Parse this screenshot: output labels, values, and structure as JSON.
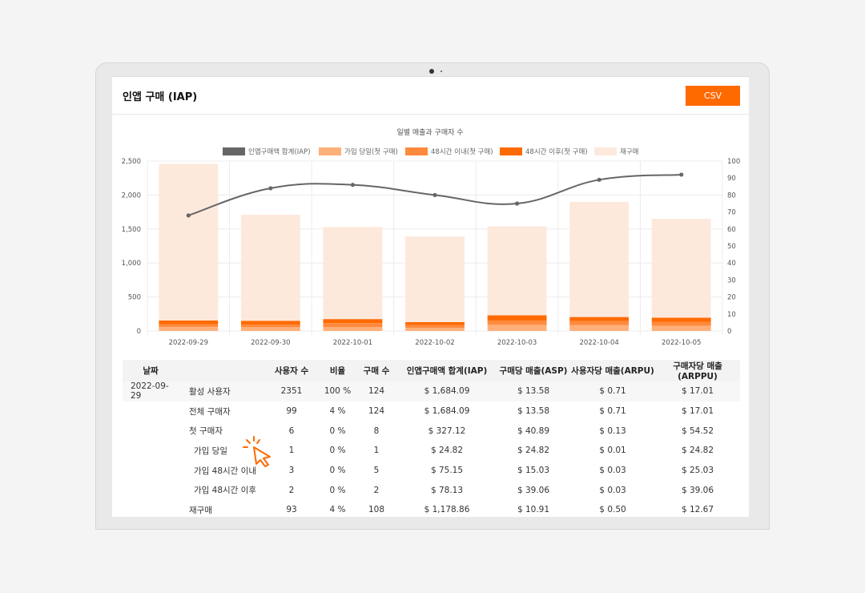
{
  "page_title": "인앱 구매 (IAP)",
  "csv_label": "CSV",
  "chart_data": {
    "type": "bar",
    "title": "일별 매출과 구매자 수",
    "stacked": true,
    "legend_position": "top",
    "categories": [
      "2022-09-29",
      "2022-09-30",
      "2022-10-01",
      "2022-10-02",
      "2022-10-03",
      "2022-10-04",
      "2022-10-05"
    ],
    "series": [
      {
        "name": "인앱구매액 합계(IAP)",
        "type": "line",
        "axis": "right",
        "color": "#666666",
        "values": [
          68,
          84,
          86,
          80,
          75,
          89,
          92
        ]
      },
      {
        "name": "가입 당일(첫 구매)",
        "type": "bar",
        "axis": "left",
        "color": "#ffb07a",
        "values": [
          60,
          55,
          55,
          45,
          90,
          85,
          75
        ]
      },
      {
        "name": "48시간 이내(첫 구매)",
        "type": "bar",
        "axis": "left",
        "color": "#ff8a3d",
        "values": [
          40,
          40,
          60,
          40,
          60,
          60,
          60
        ]
      },
      {
        "name": "48시간 이후(첫 구매)",
        "type": "bar",
        "axis": "left",
        "color": "#ff6a00",
        "values": [
          55,
          55,
          60,
          45,
          80,
          60,
          60
        ]
      },
      {
        "name": "재구매",
        "type": "bar",
        "axis": "left",
        "color": "#fde9dc",
        "values": [
          2305,
          1560,
          1355,
          1260,
          1310,
          1695,
          1455
        ]
      }
    ],
    "ylim": [
      0,
      2500
    ],
    "y_ticks": [
      "2,500",
      "2,000",
      "1,500",
      "1,000",
      "500",
      "0"
    ],
    "y2lim": [
      0,
      100
    ],
    "y2_ticks": [
      "100",
      "90",
      "80",
      "70",
      "60",
      "50",
      "40",
      "30",
      "20",
      "10",
      "0"
    ],
    "grid": true
  },
  "table": {
    "headers": [
      "날짜",
      "",
      "사용자 수",
      "비율",
      "구매 수",
      "인앱구매액 합계(IAP)",
      "구매당 매출(ASP)",
      "사용자당 매출(ARPU)",
      "구매자당 매출(ARPPU)"
    ],
    "rows": [
      [
        "2022-09-29",
        "활성 사용자",
        "2351",
        "100 %",
        "124",
        "$ 1,684.09",
        "$ 13.58",
        "$ 0.71",
        "$ 17.01"
      ],
      [
        "",
        "전체 구매자",
        "99",
        "4 %",
        "124",
        "$ 1,684.09",
        "$ 13.58",
        "$ 0.71",
        "$ 17.01"
      ],
      [
        "",
        "첫 구매자",
        "6",
        "0 %",
        "8",
        "$ 327.12",
        "$ 40.89",
        "$ 0.13",
        "$ 54.52"
      ],
      [
        "",
        "가입 당일",
        "1",
        "0 %",
        "1",
        "$ 24.82",
        "$ 24.82",
        "$ 0.01",
        "$ 24.82"
      ],
      [
        "",
        "가입 48시간 이내",
        "3",
        "0 %",
        "5",
        "$ 75.15",
        "$ 15.03",
        "$ 0.03",
        "$ 25.03"
      ],
      [
        "",
        "가입 48시간 이후",
        "2",
        "0 %",
        "2",
        "$ 78.13",
        "$ 39.06",
        "$ 0.03",
        "$ 39.06"
      ],
      [
        "",
        "재구매",
        "93",
        "4 %",
        "108",
        "$ 1,178.86",
        "$ 10.91",
        "$ 0.50",
        "$ 12.67"
      ]
    ],
    "indent_levels": [
      1,
      1,
      1,
      2,
      2,
      2,
      1
    ]
  },
  "cursor_icon": "pointer-click-icon"
}
